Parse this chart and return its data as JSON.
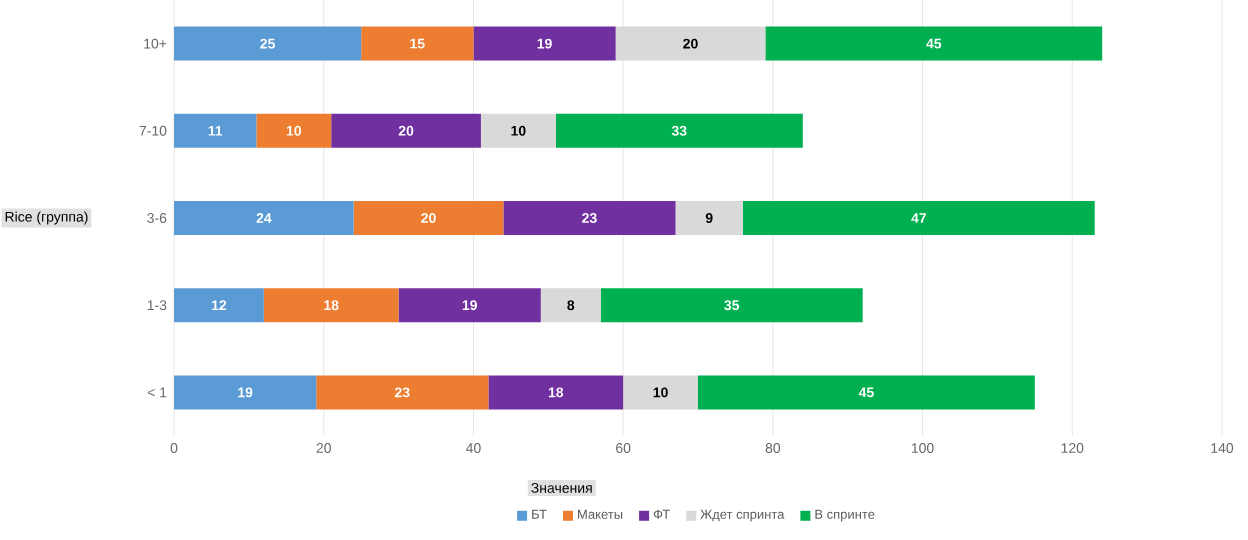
{
  "chart_data": {
    "type": "bar",
    "orientation": "horizontal",
    "stacked": true,
    "categories": [
      "10+",
      "7-10",
      "3-6",
      "1-3",
      "< 1"
    ],
    "series": [
      {
        "name": "БТ",
        "color": "#5b9bd5",
        "values": [
          25,
          11,
          24,
          12,
          19
        ]
      },
      {
        "name": "Макеты",
        "color": "#ed7d31",
        "values": [
          15,
          10,
          20,
          18,
          23
        ]
      },
      {
        "name": "ФТ",
        "color": "#7030a0",
        "values": [
          19,
          20,
          23,
          19,
          18
        ]
      },
      {
        "name": "Ждет спринта",
        "color": "#d9d9d9",
        "values": [
          20,
          10,
          9,
          8,
          10
        ]
      },
      {
        "name": "В спринте",
        "color": "#00b050",
        "values": [
          45,
          33,
          47,
          35,
          45
        ]
      }
    ],
    "xlim": [
      0,
      140
    ],
    "xticks": [
      0,
      20,
      40,
      60,
      80,
      100,
      120,
      140
    ],
    "xlabel": "Значения",
    "ylabel": "Rice (группа)",
    "grid": "x",
    "legend": "bottom",
    "data_labels": true
  }
}
